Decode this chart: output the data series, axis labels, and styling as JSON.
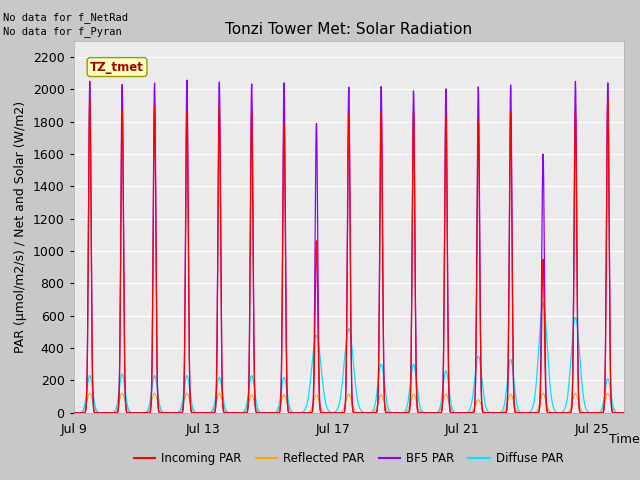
{
  "title": "Tonzi Tower Met: Solar Radiation",
  "xlabel": "Time",
  "ylabel": "PAR (μmol/m2/s) / Net and Solar (W/m2)",
  "ylim": [
    0,
    2300
  ],
  "yticks": [
    0,
    200,
    400,
    600,
    800,
    1000,
    1200,
    1400,
    1600,
    1800,
    2000,
    2200
  ],
  "xtick_labels": [
    "Jul 9",
    "Jul 13",
    "Jul 17",
    "Jul 21",
    "Jul 25"
  ],
  "xtick_positions": [
    0,
    4,
    8,
    12,
    16
  ],
  "no_data_text1": "No data for f_NetRad",
  "no_data_text2": "No data for f_Pyran",
  "station_label": "TZ_tmet",
  "legend_entries": [
    "Incoming PAR",
    "Reflected PAR",
    "BF5 PAR",
    "Diffuse PAR"
  ],
  "legend_colors": [
    "#ff0000",
    "#ffa500",
    "#8b00ff",
    "#00e5ff"
  ],
  "incoming_par_color": "#ff0000",
  "reflected_par_color": "#ffa500",
  "bf5_par_color": "#8b00ff",
  "diffuse_par_color": "#00e5ff",
  "plot_bg_color": "#ebebeb",
  "grid_color": "#ffffff",
  "fig_bg_color": "#c8c8c8",
  "n_days": 17,
  "title_fontsize": 11,
  "axis_label_fontsize": 9,
  "tick_fontsize": 9,
  "bf5_peaks": [
    2050,
    2030,
    2040,
    2060,
    2050,
    2040,
    2050,
    2030,
    2030,
    2030,
    2000,
    2010,
    2020,
    2030,
    2050,
    2050,
    2040
  ],
  "incoming_peaks": [
    1950,
    1870,
    1900,
    1870,
    1900,
    1870,
    1800,
    1840,
    1860,
    1870,
    1870,
    1850,
    1810,
    1860,
    1880,
    1870,
    1950
  ],
  "reflected_peaks": [
    120,
    120,
    120,
    120,
    120,
    110,
    110,
    110,
    115,
    110,
    115,
    115,
    80,
    115,
    120,
    120,
    120
  ],
  "diffuse_peaks": [
    230,
    240,
    230,
    230,
    220,
    230,
    220,
    480,
    520,
    300,
    300,
    260,
    350,
    330,
    680,
    590,
    210
  ],
  "diffuse_widths": [
    0.09,
    0.09,
    0.09,
    0.09,
    0.09,
    0.09,
    0.09,
    0.14,
    0.14,
    0.1,
    0.1,
    0.09,
    0.11,
    0.1,
    0.13,
    0.13,
    0.09
  ],
  "incoming_disrupted": [
    false,
    false,
    false,
    false,
    false,
    false,
    false,
    true,
    false,
    false,
    false,
    false,
    false,
    false,
    true,
    false,
    false
  ],
  "incoming_disrupted_peaks": [
    1070,
    950
  ],
  "bf5_disrupted": [
    false,
    false,
    false,
    false,
    false,
    false,
    false,
    true,
    false,
    false,
    false,
    false,
    false,
    false,
    true,
    false,
    false
  ],
  "bf5_disrupted_peaks": [
    1800,
    1600
  ]
}
